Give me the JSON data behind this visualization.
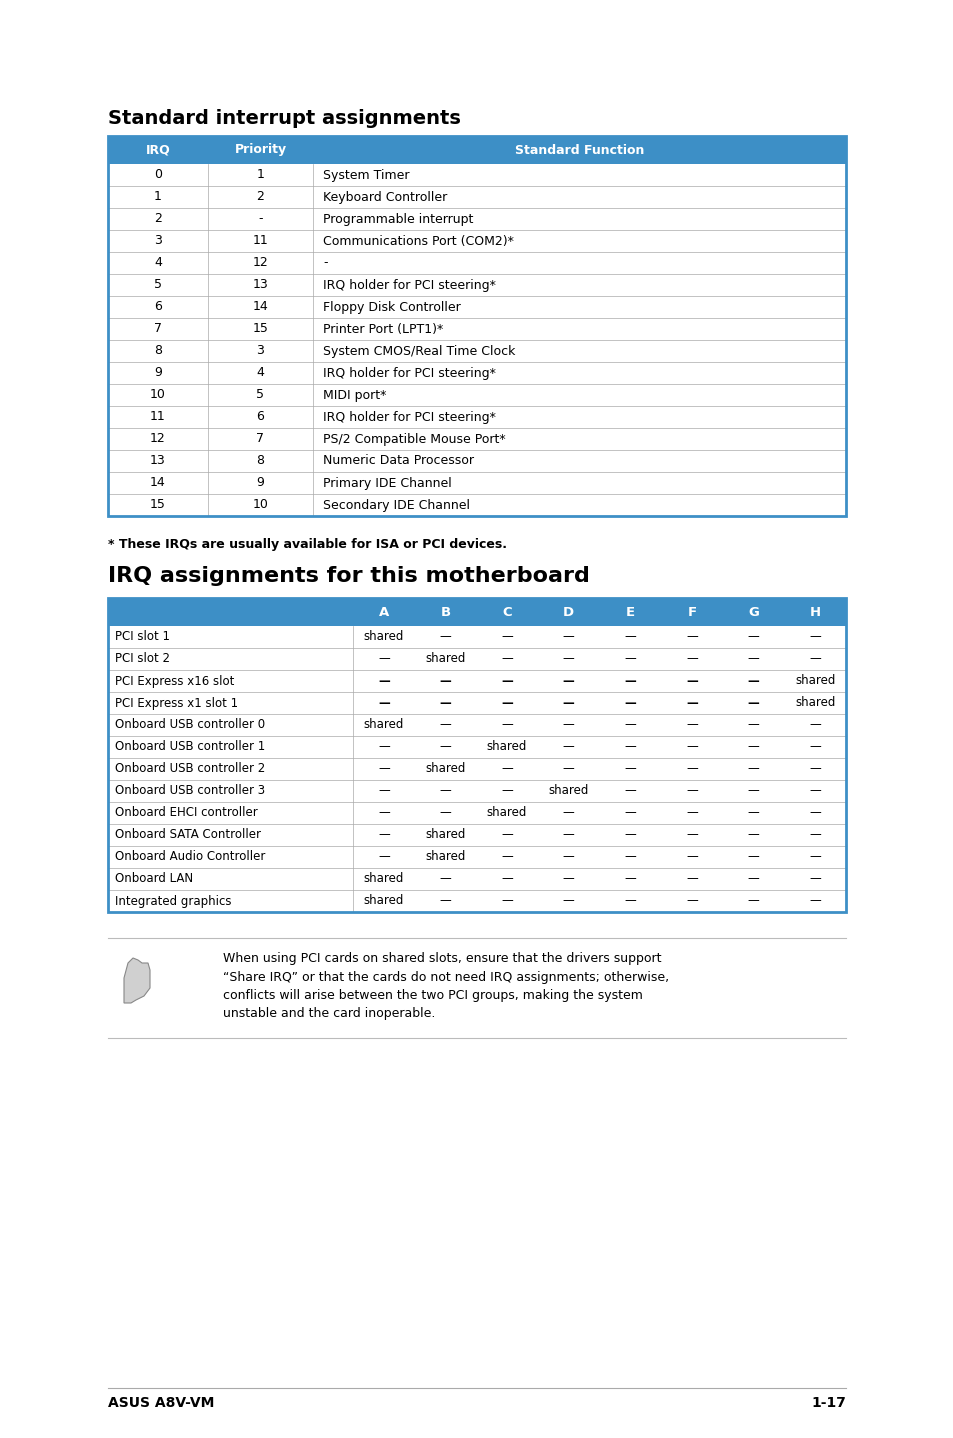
{
  "page_bg": "#ffffff",
  "header_bg": "#3d8fc6",
  "header_text_color": "#ffffff",
  "body_text_color": "#000000",
  "table_border_color": "#3d8fc6",
  "row_line_color": "#aaaaaa",
  "title1": "Standard interrupt assignments",
  "table1_headers": [
    "IRQ",
    "Priority",
    "Standard Function"
  ],
  "table1_rows": [
    [
      "0",
      "1",
      "System Timer"
    ],
    [
      "1",
      "2",
      "Keyboard Controller"
    ],
    [
      "2",
      "-",
      "Programmable interrupt"
    ],
    [
      "3",
      "11",
      "Communications Port (COM2)*"
    ],
    [
      "4",
      "12",
      "-"
    ],
    [
      "5",
      "13",
      "IRQ holder for PCI steering*"
    ],
    [
      "6",
      "14",
      "Floppy Disk Controller"
    ],
    [
      "7",
      "15",
      "Printer Port (LPT1)*"
    ],
    [
      "8",
      "3",
      "System CMOS/Real Time Clock"
    ],
    [
      "9",
      "4",
      "IRQ holder for PCI steering*"
    ],
    [
      "10",
      "5",
      "MIDI port*"
    ],
    [
      "11",
      "6",
      "IRQ holder for PCI steering*"
    ],
    [
      "12",
      "7",
      "PS/2 Compatible Mouse Port*"
    ],
    [
      "13",
      "8",
      "Numeric Data Processor"
    ],
    [
      "14",
      "9",
      "Primary IDE Channel"
    ],
    [
      "15",
      "10",
      "Secondary IDE Channel"
    ]
  ],
  "footnote": "* These IRQs are usually available for ISA or PCI devices.",
  "title2": "IRQ assignments for this motherboard",
  "table2_headers": [
    "",
    "A",
    "B",
    "C",
    "D",
    "E",
    "F",
    "G",
    "H"
  ],
  "table2_rows": [
    [
      "PCI slot 1",
      "shared",
      "—",
      "—",
      "—",
      "—",
      "—",
      "—",
      "—"
    ],
    [
      "PCI slot 2",
      "—",
      "shared",
      "—",
      "—",
      "—",
      "—",
      "—",
      "—"
    ],
    [
      "PCI Express x16 slot",
      "—",
      "—",
      "—",
      "—",
      "—",
      "—",
      "—",
      "shared"
    ],
    [
      "PCI Express x1 slot 1",
      "—",
      "—",
      "—",
      "—",
      "—",
      "—",
      "—",
      "shared"
    ],
    [
      "Onboard USB controller 0",
      "shared",
      "—",
      "—",
      "—",
      "—",
      "—",
      "—",
      "—"
    ],
    [
      "Onboard USB controller 1",
      "—",
      "—",
      "shared",
      "—",
      "—",
      "—",
      "—",
      "—"
    ],
    [
      "Onboard USB controller 2",
      "—",
      "shared",
      "—",
      "—",
      "—",
      "—",
      "—",
      "—"
    ],
    [
      "Onboard USB controller 3",
      "—",
      "—",
      "—",
      "shared",
      "—",
      "—",
      "—",
      "—"
    ],
    [
      "Onboard EHCI controller",
      "—",
      "—",
      "shared",
      "—",
      "—",
      "—",
      "—",
      "—"
    ],
    [
      "Onboard SATA Controller",
      "—",
      "shared",
      "—",
      "—",
      "—",
      "—",
      "—",
      "—"
    ],
    [
      "Onboard Audio Controller",
      "—",
      "shared",
      "—",
      "—",
      "—",
      "—",
      "—",
      "—"
    ],
    [
      "Onboard LAN",
      "shared",
      "—",
      "—",
      "—",
      "—",
      "—",
      "—",
      "—"
    ],
    [
      "Integrated graphics",
      "shared",
      "—",
      "—",
      "—",
      "—",
      "—",
      "—",
      "—"
    ]
  ],
  "note_text": "When using PCI cards on shared slots, ensure that the drivers support\n“Share IRQ” or that the cards do not need IRQ assignments; otherwise,\nconflicts will arise between the two PCI groups, making the system\nunstable and the card inoperable.",
  "footer_left": "ASUS A8V-VM",
  "footer_right": "1-17"
}
